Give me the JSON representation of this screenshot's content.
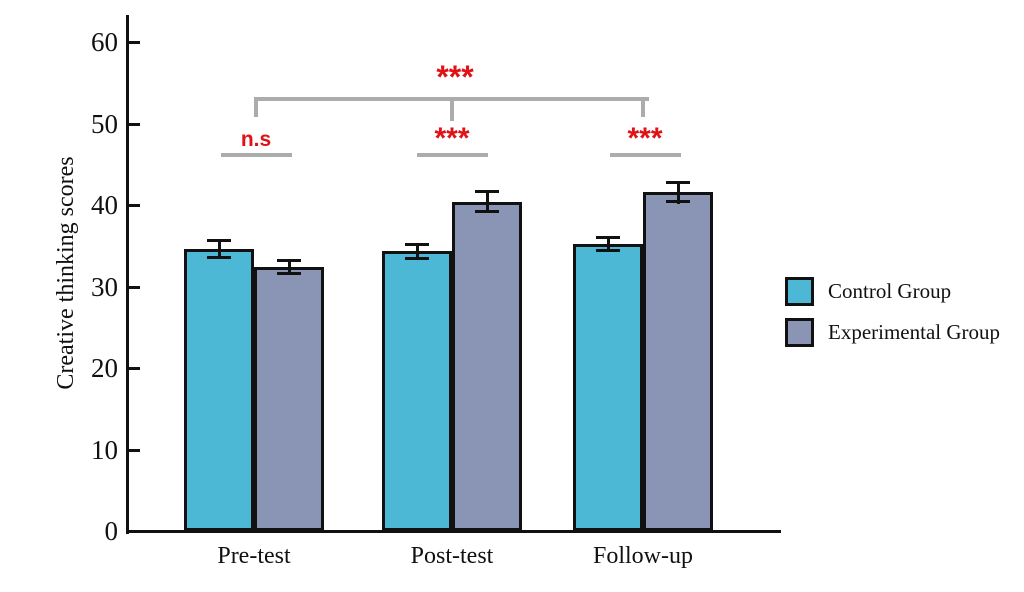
{
  "figure": {
    "background": "#FFFFFF"
  },
  "chart_data": {
    "type": "bar",
    "title": "",
    "ylabel": "Creative thinking scores",
    "xlabel": "",
    "categories": [
      "Pre-test",
      "Post-test",
      "Follow-up"
    ],
    "series": [
      {
        "name": "Control Group",
        "color": "#4DB8D6",
        "values": [
          34.6,
          34.3,
          35.2
        ],
        "errors": [
          1.2,
          1.0,
          1.0
        ]
      },
      {
        "name": "Experimental Group",
        "color": "#8A94B5",
        "values": [
          32.4,
          40.4,
          41.6
        ],
        "errors": [
          1.0,
          1.4,
          1.4
        ]
      }
    ],
    "ylim": [
      0,
      63
    ],
    "yticks": [
      0,
      10,
      20,
      30,
      40,
      50,
      60
    ],
    "grid": false,
    "legend_position": "right-center",
    "bar_outline_color": "#111111",
    "error_bar_color": "#111111",
    "annotations": {
      "pairwise": [
        {
          "category": "Pre-test",
          "label": "n.s"
        },
        {
          "category": "Post-test",
          "label": "***"
        },
        {
          "category": "Follow-up",
          "label": "***"
        }
      ],
      "overall_bracket": {
        "from": "Pre-test",
        "to": "Follow-up",
        "via": "Post-test",
        "label": "***"
      },
      "significance_color": "#E01216",
      "bracket_color": "#ACACAC"
    }
  }
}
